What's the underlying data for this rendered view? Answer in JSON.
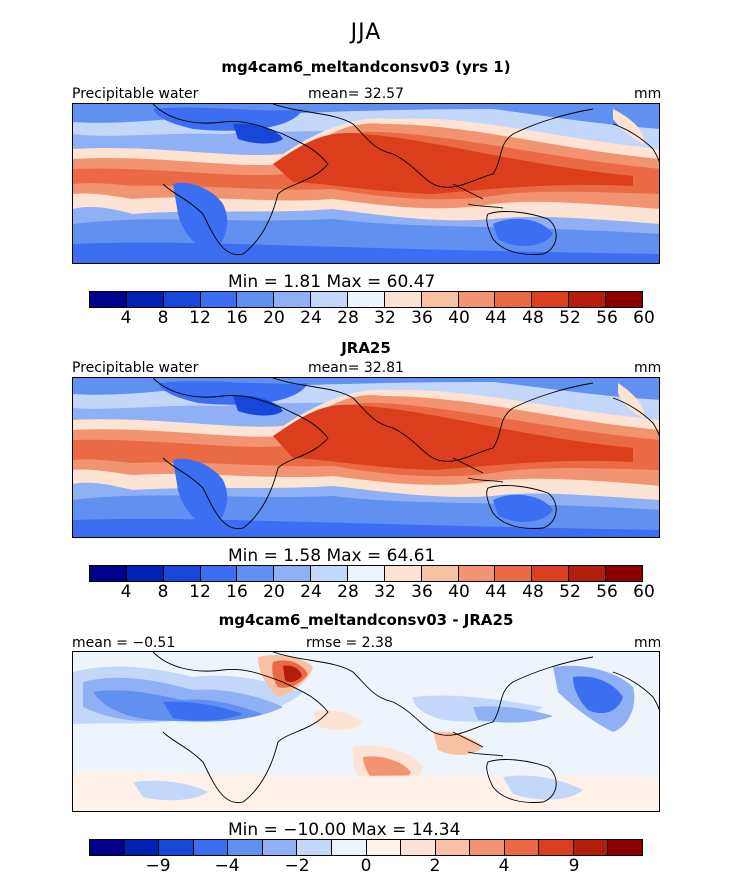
{
  "season": "JJA",
  "colors": {
    "seq15": [
      "#00008b",
      "#0022b4",
      "#1747d8",
      "#3b6ef0",
      "#6090f0",
      "#8fb0f5",
      "#c3d7fa",
      "#eef4fc",
      "#fde3d3",
      "#f9c1a3",
      "#f29472",
      "#ea6a45",
      "#db3e1c",
      "#b41c0c",
      "#8b0000"
    ],
    "diff16": [
      "#00008b",
      "#0022b4",
      "#1747d8",
      "#3b6ef0",
      "#6090f0",
      "#8fb0f5",
      "#c3d7fa",
      "#eef4fc",
      "#fdf1ea",
      "#fde3d3",
      "#f9c1a3",
      "#f29472",
      "#ea6a45",
      "#db3e1c",
      "#b41c0c",
      "#8b0000"
    ]
  },
  "panels": [
    {
      "title": "mg4cam6_meltandconsv03 (yrs 1)",
      "label_left": "Precipitable water",
      "label_mid": "mean=  32.57",
      "label_right": "mm",
      "stats": "Min =    1.81  Max =   60.47",
      "ticks": [
        "4",
        "8",
        "12",
        "16",
        "20",
        "24",
        "28",
        "32",
        "36",
        "40",
        "44",
        "48",
        "52",
        "56",
        "60"
      ]
    },
    {
      "title": "JRA25",
      "label_left": "Precipitable water",
      "label_mid": "mean=  32.81",
      "label_right": "mm",
      "stats": "Min =    1.58  Max =   64.61",
      "ticks": [
        "4",
        "8",
        "12",
        "16",
        "20",
        "24",
        "28",
        "32",
        "36",
        "40",
        "44",
        "48",
        "52",
        "56",
        "60"
      ]
    },
    {
      "title": "mg4cam6_meltandconsv03 - JRA25",
      "label_left": "mean =  −0.51",
      "label_mid": "rmse =    2.38",
      "label_right": "mm",
      "stats": "Min = −10.00  Max =   14.34",
      "ticks": [
        "−9",
        "−4",
        "−2",
        "0",
        "2",
        "4",
        "9"
      ]
    }
  ],
  "chart_data": [
    {
      "type": "heatmap",
      "title": "mg4cam6_meltandconsv03 (yrs 1)",
      "variable": "Precipitable water",
      "units": "mm",
      "season": "JJA",
      "mean": 32.57,
      "min": 1.81,
      "max": 60.47,
      "contour_levels": [
        4,
        8,
        12,
        16,
        20,
        24,
        28,
        32,
        36,
        40,
        44,
        48,
        52,
        56,
        60
      ]
    },
    {
      "type": "heatmap",
      "title": "JRA25",
      "variable": "Precipitable water",
      "units": "mm",
      "season": "JJA",
      "mean": 32.81,
      "min": 1.58,
      "max": 64.61,
      "contour_levels": [
        4,
        8,
        12,
        16,
        20,
        24,
        28,
        32,
        36,
        40,
        44,
        48,
        52,
        56,
        60
      ]
    },
    {
      "type": "heatmap",
      "title": "mg4cam6_meltandconsv03 - JRA25",
      "units": "mm",
      "season": "JJA",
      "mean": -0.51,
      "rmse": 2.38,
      "min": -10.0,
      "max": 14.34,
      "contour_levels": [
        -9,
        -4,
        -2,
        0,
        2,
        4,
        9
      ]
    }
  ]
}
